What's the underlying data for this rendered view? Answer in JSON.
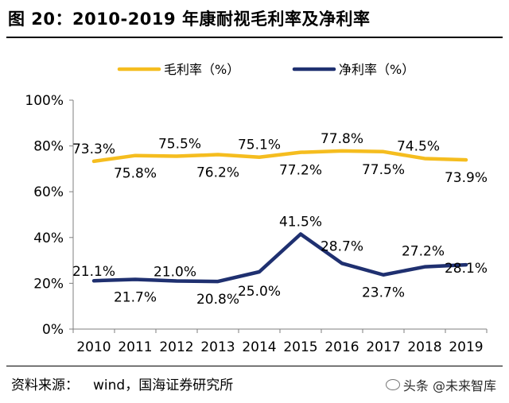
{
  "header": {
    "title": "图 20：2010-2019 年康耐视毛利率及净利率"
  },
  "footer": {
    "source_label": "资料来源：",
    "source_text": "wind，国海证券研究所",
    "watermark": "头条 @未来智库"
  },
  "colors": {
    "gross_margin": "#F5BD1F",
    "net_margin": "#1F3070",
    "axis": "#7f7f7f"
  },
  "chart_data": {
    "type": "line",
    "title": "2010-2019 年康耐视毛利率及净利率",
    "xlabel": "",
    "ylabel": "",
    "categories": [
      "2010",
      "2011",
      "2012",
      "2013",
      "2014",
      "2015",
      "2016",
      "2017",
      "2018",
      "2019"
    ],
    "ylim": [
      0,
      100
    ],
    "yticks": [
      "0%",
      "20%",
      "40%",
      "60%",
      "80%",
      "100%"
    ],
    "grid": false,
    "legend_position": "top",
    "series": [
      {
        "name": "毛利率（%）",
        "values": [
          73.3,
          75.8,
          75.5,
          76.2,
          75.1,
          77.2,
          77.8,
          77.5,
          74.5,
          73.9
        ],
        "labels": [
          "73.3%",
          "75.8%",
          "75.5%",
          "76.2%",
          "75.1%",
          "77.2%",
          "77.8%",
          "77.5%",
          "74.5%",
          "73.9%"
        ]
      },
      {
        "name": "净利率（%）",
        "values": [
          21.1,
          21.7,
          21.0,
          20.8,
          25.0,
          41.5,
          28.7,
          23.7,
          27.2,
          28.1
        ],
        "labels": [
          "21.1%",
          "21.7%",
          "21.0%",
          "20.8%",
          "25.0%",
          "41.5%",
          "28.7%",
          "23.7%",
          "27.2%",
          "28.1%"
        ]
      }
    ]
  }
}
